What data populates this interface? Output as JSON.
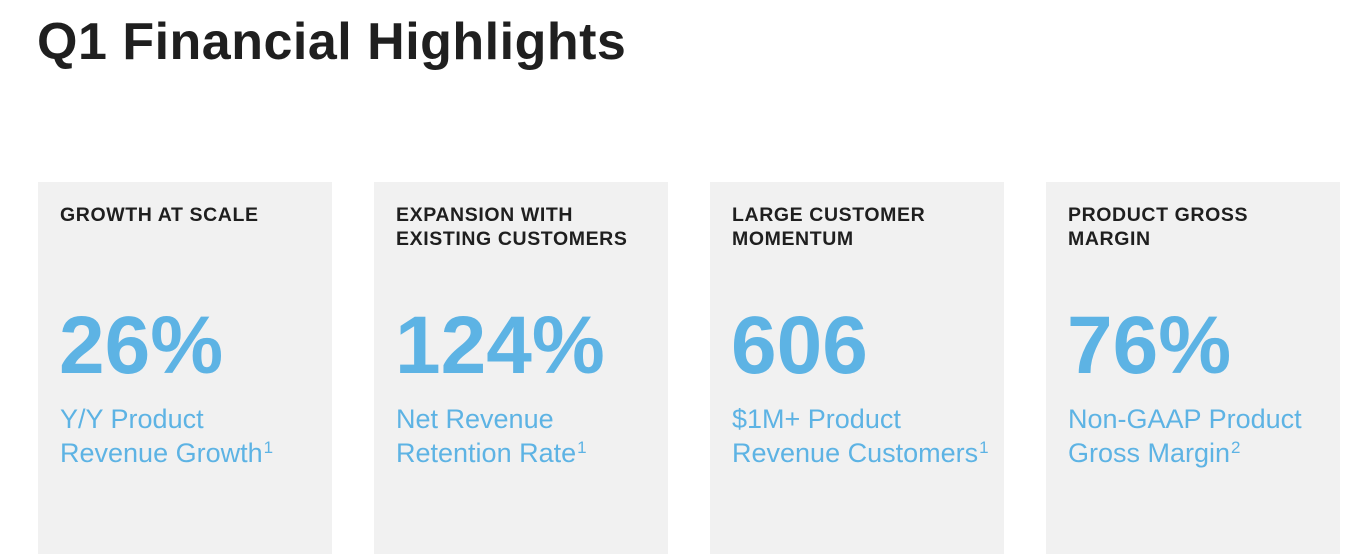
{
  "title": "Q1 Financial Highlights",
  "cards": [
    {
      "heading_line1": "GROWTH AT SCALE",
      "heading_line2": "",
      "value": "26%",
      "desc_line1": "Y/Y Product",
      "desc_line2": "Revenue Growth",
      "footnote": "1"
    },
    {
      "heading_line1": "EXPANSION WITH",
      "heading_line2": "EXISTING CUSTOMERS",
      "value": "124%",
      "desc_line1": "Net Revenue",
      "desc_line2": "Retention Rate",
      "footnote": "1"
    },
    {
      "heading_line1": "LARGE CUSTOMER",
      "heading_line2": "MOMENTUM",
      "value": "606",
      "desc_line1": "$1M+ Product",
      "desc_line2": "Revenue Customers",
      "footnote": "1"
    },
    {
      "heading_line1": "PRODUCT GROSS",
      "heading_line2": "MARGIN",
      "value": "76%",
      "desc_line1": "Non-GAAP Product",
      "desc_line2": "Gross Margin",
      "footnote": "2"
    }
  ],
  "colors": {
    "accent": "#5db3e4",
    "heading": "#1f1f1f",
    "card_background": "#f1f1f1"
  }
}
